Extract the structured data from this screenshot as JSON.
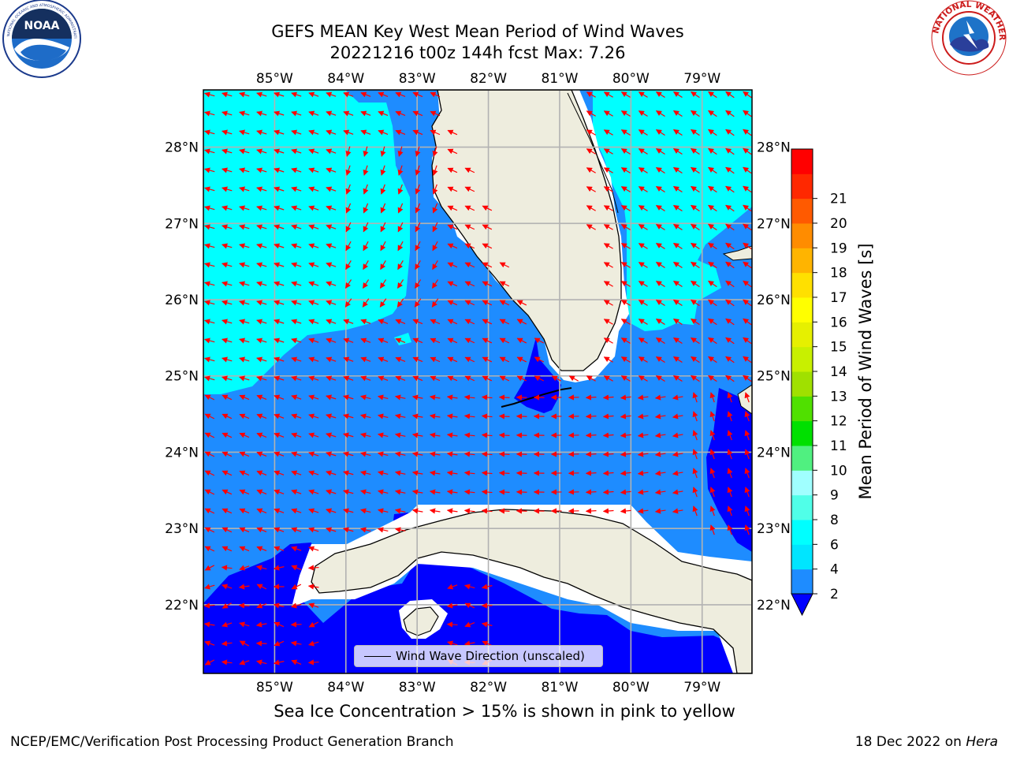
{
  "title": {
    "line1": "GEFS MEAN Key West Mean Period of Wind Waves",
    "line2": "20221216 t00z 144h fcst   Max: 7.26"
  },
  "logos": {
    "noaa": {
      "center_text": "NOAA",
      "ring_text": "NATIONAL OCEANIC AND ATMOSPHERIC ADMINISTRATION · U.S. DEPARTMENT OF COMMERCE"
    },
    "nws": {
      "ring_text": "NATIONAL WEATHER SERVICE"
    }
  },
  "map": {
    "lon_labels": [
      "85°W",
      "84°W",
      "83°W",
      "82°W",
      "81°W",
      "80°W",
      "79°W"
    ],
    "lat_labels": [
      "28°N",
      "27°N",
      "26°N",
      "25°N",
      "24°N",
      "23°N",
      "22°N"
    ],
    "lon_range": [
      -86.0,
      -78.3
    ],
    "lat_range": [
      21.1,
      28.75
    ],
    "colors": {
      "land": "#eeedde",
      "band_2_4": "#1e8cff",
      "band_4_6": "#00ffff",
      "below_2": "#0000ff",
      "arrow": "#ff0000",
      "grid": "#b2b2b2"
    }
  },
  "legend": {
    "label": "Wind Wave Direction (unscaled)"
  },
  "colorbar": {
    "label": "Mean Period of Wind Waves [s]",
    "ticks": [
      "2",
      "4",
      "6",
      "8",
      "9",
      "10",
      "11",
      "12",
      "13",
      "14",
      "15",
      "16",
      "17",
      "18",
      "19",
      "20",
      "21"
    ],
    "tick_values": [
      2,
      4,
      6,
      8,
      9,
      10,
      11,
      12,
      13,
      14,
      15,
      16,
      17,
      18,
      19,
      20,
      21
    ],
    "colors": [
      "#1e8cff",
      "#00e5ff",
      "#00ffff",
      "#50ffe8",
      "#a0ffff",
      "#50f080",
      "#00e000",
      "#50e000",
      "#a0e000",
      "#c8f000",
      "#e6f000",
      "#ffff00",
      "#ffe000",
      "#ffb400",
      "#ff8c00",
      "#ff5a00",
      "#ff2800",
      "#ff0000"
    ],
    "extend_color": "#0000ff"
  },
  "subtitle": "Sea Ice Concentration > 15% is shown in pink to yellow",
  "footer": {
    "left": "NCEP/EMC/Verification Post Processing Product Generation Branch",
    "right_prefix": "18 Dec 2022 on ",
    "right_machine": "Hera"
  }
}
